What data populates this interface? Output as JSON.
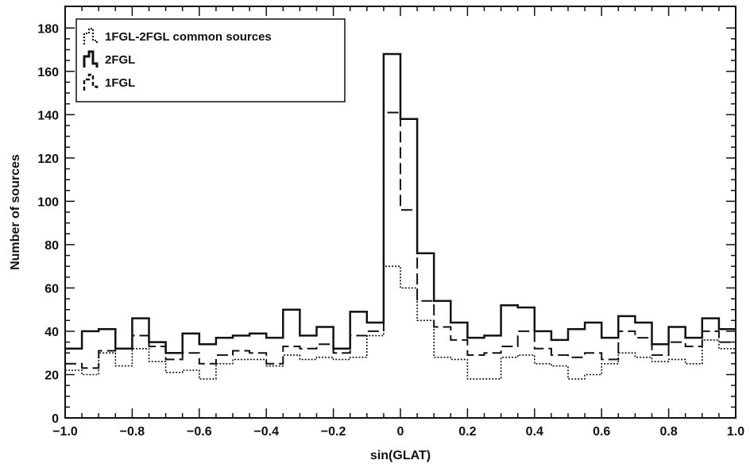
{
  "chart_data": {
    "type": "histogram",
    "xlabel": "sin(GLAT)",
    "ylabel": "Number of sources",
    "xlim": [
      -1.0,
      1.0
    ],
    "ylim": [
      0,
      190
    ],
    "x_ticks": [
      "-1.0",
      "-0.8",
      "-0.6",
      "-0.4",
      "-0.2",
      "0",
      "0.2",
      "0.4",
      "0.6",
      "0.8",
      "1.0"
    ],
    "y_ticks": [
      "0",
      "20",
      "40",
      "60",
      "80",
      "100",
      "120",
      "140",
      "160",
      "180"
    ],
    "legend_position": "top-left",
    "bin_edges": [
      -1.0,
      -0.95,
      -0.9,
      -0.85,
      -0.8,
      -0.75,
      -0.7,
      -0.65,
      -0.6,
      -0.55,
      -0.5,
      -0.45,
      -0.4,
      -0.35,
      -0.3,
      -0.25,
      -0.2,
      -0.15,
      -0.1,
      -0.05,
      0.0,
      0.05,
      0.1,
      0.15,
      0.2,
      0.25,
      0.3,
      0.35,
      0.4,
      0.45,
      0.5,
      0.55,
      0.6,
      0.65,
      0.7,
      0.75,
      0.8,
      0.85,
      0.9,
      0.95,
      1.0
    ],
    "series": [
      {
        "name": "2FGL",
        "style": "solid",
        "values": [
          32,
          40,
          41,
          32,
          46,
          35,
          30,
          39,
          34,
          37,
          38,
          39,
          37,
          50,
          38,
          42,
          32,
          49,
          44,
          168,
          138,
          76,
          54,
          44,
          37,
          38,
          52,
          51,
          40,
          36,
          41,
          44,
          37,
          47,
          44,
          34,
          42,
          37,
          46,
          41
        ]
      },
      {
        "name": "1FGL",
        "style": "dashed",
        "values": [
          25,
          23,
          31,
          32,
          38,
          33,
          27,
          30,
          25,
          29,
          31,
          30,
          25,
          33,
          32,
          34,
          30,
          38,
          40,
          141,
          96,
          54,
          42,
          36,
          29,
          30,
          33,
          40,
          32,
          29,
          28,
          30,
          27,
          40,
          37,
          29,
          35,
          33,
          40,
          35
        ]
      },
      {
        "name": "1FGL-2FGL common sources",
        "style": "dotted",
        "values": [
          22,
          20,
          30,
          24,
          32,
          26,
          21,
          22,
          18,
          25,
          27,
          27,
          24,
          29,
          27,
          28,
          27,
          28,
          38,
          70,
          60,
          45,
          28,
          27,
          18,
          18,
          28,
          29,
          25,
          24,
          18,
          20,
          25,
          30,
          28,
          26,
          27,
          25,
          36,
          32
        ]
      }
    ]
  }
}
